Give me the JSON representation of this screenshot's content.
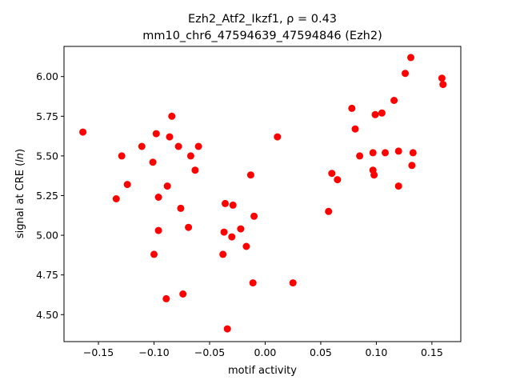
{
  "chart_data": {
    "type": "scatter",
    "title_line1": "Ezh2_Atf2_Ikzf1, ρ = 0.43",
    "title_line2": "mm10_chr6_47594639_47594846 (Ezh2)",
    "xlabel": "motif activity",
    "ylabel_prefix": "signal at CRE (",
    "ylabel_italic": "ln",
    "ylabel_suffix": ")",
    "xlim": [
      -0.181,
      0.176
    ],
    "ylim": [
      4.33,
      6.19
    ],
    "x_ticks": [
      -0.15,
      -0.1,
      -0.05,
      0.0,
      0.05,
      0.1,
      0.15
    ],
    "x_tick_labels": [
      "−0.15",
      "−0.10",
      "−0.05",
      "0.00",
      "0.05",
      "0.10",
      "0.15"
    ],
    "y_ticks": [
      4.5,
      4.75,
      5.0,
      5.25,
      5.5,
      5.75,
      6.0
    ],
    "y_tick_labels": [
      "4.50",
      "4.75",
      "5.00",
      "5.25",
      "5.50",
      "5.75",
      "6.00"
    ],
    "grid": false,
    "marker_color": "#ff0000",
    "points": [
      {
        "x": -0.164,
        "y": 5.65
      },
      {
        "x": -0.134,
        "y": 5.23
      },
      {
        "x": -0.129,
        "y": 5.5
      },
      {
        "x": -0.124,
        "y": 5.32
      },
      {
        "x": -0.111,
        "y": 5.56
      },
      {
        "x": -0.101,
        "y": 5.46
      },
      {
        "x": -0.1,
        "y": 4.88
      },
      {
        "x": -0.098,
        "y": 5.64
      },
      {
        "x": -0.096,
        "y": 5.24
      },
      {
        "x": -0.096,
        "y": 5.03
      },
      {
        "x": -0.089,
        "y": 4.6
      },
      {
        "x": -0.088,
        "y": 5.31
      },
      {
        "x": -0.086,
        "y": 5.62
      },
      {
        "x": -0.084,
        "y": 5.75
      },
      {
        "x": -0.078,
        "y": 5.56
      },
      {
        "x": -0.076,
        "y": 5.17
      },
      {
        "x": -0.074,
        "y": 4.63
      },
      {
        "x": -0.069,
        "y": 5.05
      },
      {
        "x": -0.067,
        "y": 5.5
      },
      {
        "x": -0.063,
        "y": 5.41
      },
      {
        "x": -0.06,
        "y": 5.56
      },
      {
        "x": -0.038,
        "y": 4.88
      },
      {
        "x": -0.037,
        "y": 5.02
      },
      {
        "x": -0.036,
        "y": 5.2
      },
      {
        "x": -0.034,
        "y": 4.41
      },
      {
        "x": -0.03,
        "y": 4.99
      },
      {
        "x": -0.029,
        "y": 5.19
      },
      {
        "x": -0.022,
        "y": 5.04
      },
      {
        "x": -0.017,
        "y": 4.93
      },
      {
        "x": -0.013,
        "y": 5.38
      },
      {
        "x": -0.011,
        "y": 4.7
      },
      {
        "x": -0.01,
        "y": 5.12
      },
      {
        "x": 0.011,
        "y": 5.62
      },
      {
        "x": 0.025,
        "y": 4.7
      },
      {
        "x": 0.057,
        "y": 5.15
      },
      {
        "x": 0.06,
        "y": 5.39
      },
      {
        "x": 0.065,
        "y": 5.35
      },
      {
        "x": 0.078,
        "y": 5.8
      },
      {
        "x": 0.081,
        "y": 5.67
      },
      {
        "x": 0.085,
        "y": 5.5
      },
      {
        "x": 0.097,
        "y": 5.41
      },
      {
        "x": 0.097,
        "y": 5.52
      },
      {
        "x": 0.098,
        "y": 5.38
      },
      {
        "x": 0.099,
        "y": 5.76
      },
      {
        "x": 0.105,
        "y": 5.77
      },
      {
        "x": 0.108,
        "y": 5.52
      },
      {
        "x": 0.116,
        "y": 5.85
      },
      {
        "x": 0.12,
        "y": 5.31
      },
      {
        "x": 0.12,
        "y": 5.53
      },
      {
        "x": 0.126,
        "y": 6.02
      },
      {
        "x": 0.131,
        "y": 6.12
      },
      {
        "x": 0.132,
        "y": 5.44
      },
      {
        "x": 0.133,
        "y": 5.52
      },
      {
        "x": 0.159,
        "y": 5.99
      },
      {
        "x": 0.16,
        "y": 5.95
      }
    ]
  }
}
